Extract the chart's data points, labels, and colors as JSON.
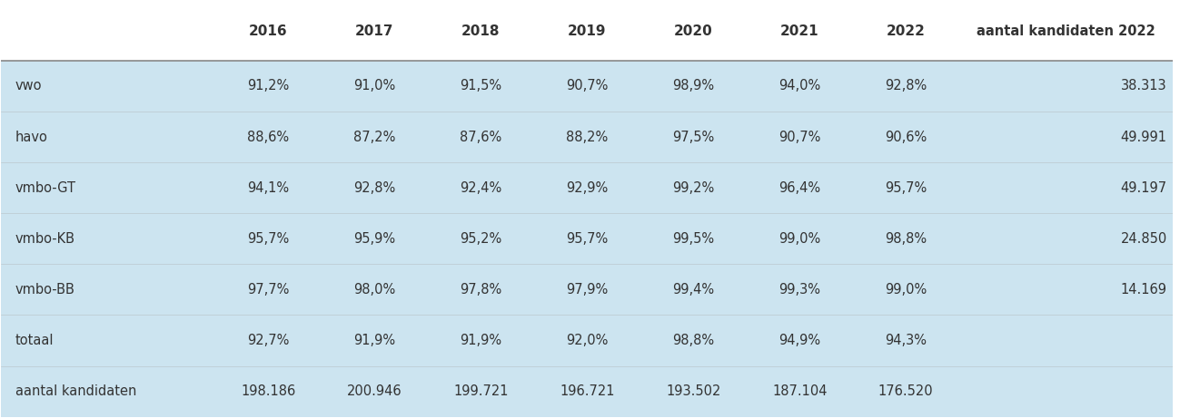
{
  "headers": [
    "",
    "2016",
    "2017",
    "2018",
    "2019",
    "2020",
    "2021",
    "2022",
    "aantal kandidaten 2022"
  ],
  "rows": [
    [
      "vwo",
      "91,2%",
      "91,0%",
      "91,5%",
      "90,7%",
      "98,9%",
      "94,0%",
      "92,8%",
      "38.313"
    ],
    [
      "havo",
      "88,6%",
      "87,2%",
      "87,6%",
      "88,2%",
      "97,5%",
      "90,7%",
      "90,6%",
      "49.991"
    ],
    [
      "vmbo-GT",
      "94,1%",
      "92,8%",
      "92,4%",
      "92,9%",
      "99,2%",
      "96,4%",
      "95,7%",
      "49.197"
    ],
    [
      "vmbo-KB",
      "95,7%",
      "95,9%",
      "95,2%",
      "95,7%",
      "99,5%",
      "99,0%",
      "98,8%",
      "24.850"
    ],
    [
      "vmbo-BB",
      "97,7%",
      "98,0%",
      "97,8%",
      "97,9%",
      "99,4%",
      "99,3%",
      "99,0%",
      "14.169"
    ],
    [
      "totaal",
      "92,7%",
      "91,9%",
      "91,9%",
      "92,0%",
      "98,8%",
      "94,9%",
      "94,3%",
      ""
    ],
    [
      "aantal kandidaten",
      "198.186",
      "200.946",
      "199.721",
      "196.721",
      "193.502",
      "187.104",
      "176.520",
      ""
    ]
  ],
  "bg_color_light": "#cce4f0",
  "header_text_color": "#333333",
  "cell_text_color": "#333333",
  "separator_color": "#888888",
  "white_bg": "#ffffff",
  "fig_bg": "#ffffff",
  "header_fontsize": 11,
  "cell_fontsize": 10.5
}
